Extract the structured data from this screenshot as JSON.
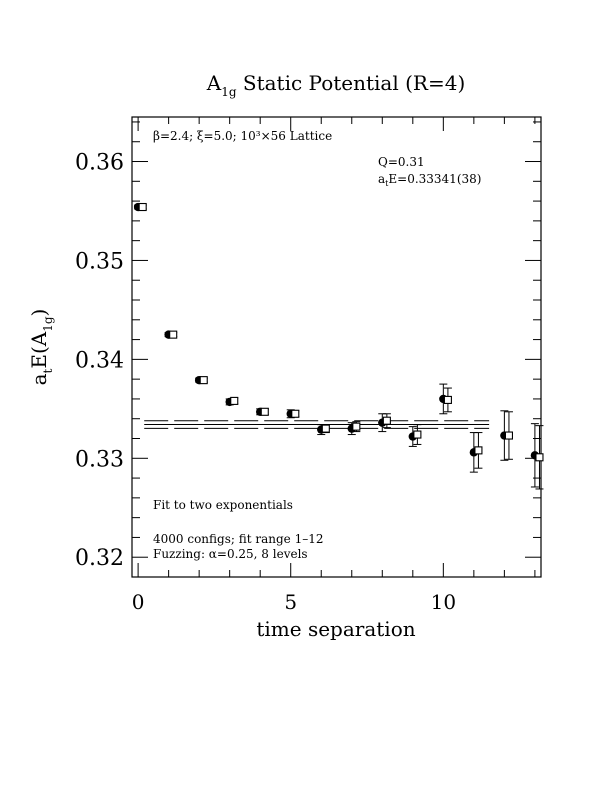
{
  "chart_data": {
    "type": "scatter",
    "title": {
      "base": "A",
      "sub": "1g",
      "rest": " Static Potential (R=4)"
    },
    "xlabel": "time separation",
    "ylabel": {
      "a": "a",
      "t": "t",
      "mid": "E(A",
      "sub": "1g",
      "end": ")"
    },
    "xlim": [
      -0.2,
      13.2
    ],
    "ylim": [
      0.318,
      0.3645
    ],
    "x_ticks": [
      0,
      5,
      10
    ],
    "x_ticklabels": [
      "0",
      "5",
      "10"
    ],
    "y_ticks": [
      0.32,
      0.33,
      0.34,
      0.35,
      0.36
    ],
    "y_ticklabels": [
      "0.32",
      "0.33",
      "0.34",
      "0.35",
      "0.36"
    ],
    "grid": false,
    "annotations": {
      "params_line": "β=2.4; ξ=5.0; 10³×56 Lattice",
      "q_value": "Q=0.31",
      "energy": {
        "a": "a",
        "t": "t",
        "rest": "E=0.33341(38)"
      },
      "fit_label": "Fit to two exponentials",
      "configs": "4000 configs; fit range 1–12",
      "fuzzing": "Fuzzing: α=0.25, 8 levels"
    },
    "fit": {
      "value": 0.33341,
      "error": 0.00038,
      "x_range": [
        1,
        12
      ]
    },
    "series": [
      {
        "marker": "filled-circle",
        "x": [
          0,
          1,
          2,
          3,
          4,
          5,
          6,
          7,
          8,
          9,
          10,
          11,
          12,
          13
        ],
        "y": [
          0.3554,
          0.3425,
          0.3379,
          0.3357,
          0.3347,
          0.3345,
          0.3329,
          0.333,
          0.3336,
          0.3322,
          0.336,
          0.3306,
          0.3323,
          0.3303
        ],
        "err": [
          0.0002,
          0.0002,
          0.0002,
          0.0003,
          0.0003,
          0.0004,
          0.0005,
          0.0006,
          0.0009,
          0.001,
          0.0015,
          0.002,
          0.0025,
          0.0032
        ]
      },
      {
        "marker": "open-square",
        "x": [
          0.15,
          1.15,
          2.15,
          3.15,
          4.15,
          5.15,
          6.15,
          7.15,
          8.15,
          9.15,
          10.15,
          11.15,
          12.15,
          13.15
        ],
        "y": [
          0.3554,
          0.3425,
          0.3379,
          0.3358,
          0.3347,
          0.3345,
          0.333,
          0.3332,
          0.3338,
          0.3324,
          0.3359,
          0.3308,
          0.3323,
          0.3301
        ],
        "err": [
          0.0002,
          0.0002,
          0.0002,
          0.0003,
          0.0003,
          0.0003,
          0.0004,
          0.0005,
          0.0007,
          0.001,
          0.0012,
          0.0018,
          0.0024,
          0.0032
        ]
      }
    ]
  }
}
